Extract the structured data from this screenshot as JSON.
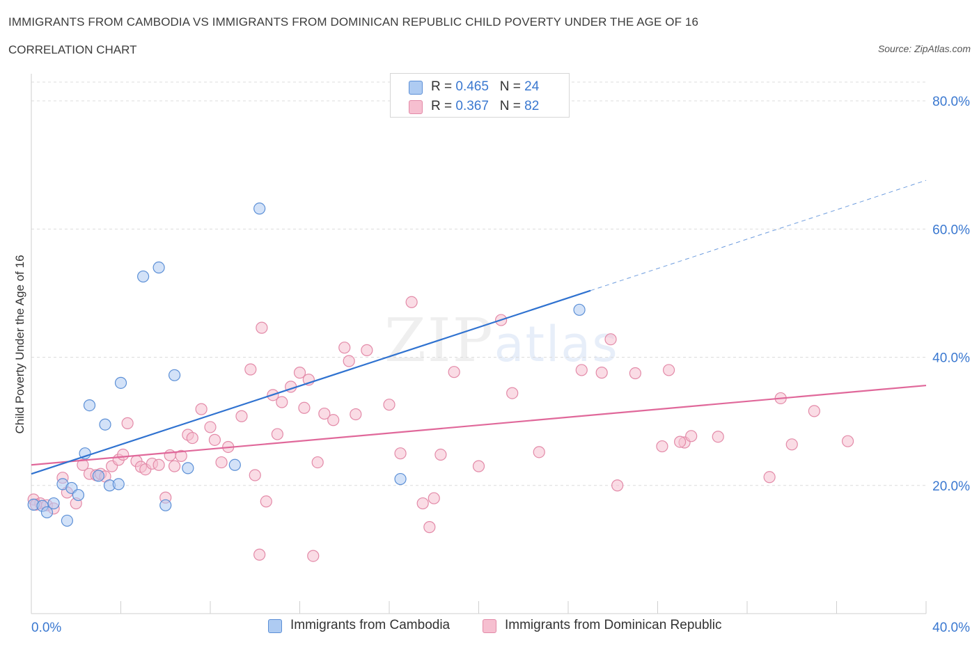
{
  "header": {
    "title": "IMMIGRANTS FROM CAMBODIA VS IMMIGRANTS FROM DOMINICAN REPUBLIC CHILD POVERTY UNDER THE AGE OF 16",
    "subtitle": "CORRELATION CHART",
    "source": "Source: ZipAtlas.com"
  },
  "watermark": {
    "zip": "ZIP",
    "atlas": "atlas"
  },
  "legend": {
    "rows": [
      {
        "r_label": "R = ",
        "r_value": "0.465",
        "n_label": "N = ",
        "n_value": "24"
      },
      {
        "r_label": "R = ",
        "r_value": "0.367",
        "n_label": "N = ",
        "n_value": "82"
      }
    ]
  },
  "colors": {
    "cambodia_fill": "#aecbf2",
    "cambodia_stroke": "#5b8fd6",
    "cambodia_line": "#2f72d0",
    "dominican_fill": "#f6bfd0",
    "dominican_stroke": "#e38aa8",
    "dominican_line": "#e0689a",
    "axis_text": "#3a78d0",
    "grid": "#dcdcdc"
  },
  "chart_data": {
    "type": "scatter",
    "title": "IMMIGRANTS FROM CAMBODIA VS IMMIGRANTS FROM DOMINICAN REPUBLIC CHILD POVERTY UNDER THE AGE OF 16",
    "ylabel": "Child Poverty Under the Age of 16",
    "x_tick_labels": [
      "0.0%",
      "40.0%"
    ],
    "y_tick_labels": [
      "20.0%",
      "40.0%",
      "60.0%",
      "80.0%"
    ],
    "y_ticks": [
      20,
      40,
      60,
      80
    ],
    "xlim": [
      0,
      40
    ],
    "ylim": [
      0,
      80
    ],
    "grid": true,
    "legend_position": "bottom",
    "series": [
      {
        "name": "Immigrants from Cambodia",
        "points": [
          [
            0.1,
            17.0
          ],
          [
            0.5,
            16.8
          ],
          [
            0.7,
            15.8
          ],
          [
            1.0,
            17.2
          ],
          [
            1.4,
            20.2
          ],
          [
            1.6,
            14.5
          ],
          [
            1.8,
            19.6
          ],
          [
            2.1,
            18.5
          ],
          [
            2.4,
            25.0
          ],
          [
            2.6,
            32.5
          ],
          [
            3.0,
            21.5
          ],
          [
            3.3,
            29.5
          ],
          [
            3.5,
            20.0
          ],
          [
            3.9,
            20.2
          ],
          [
            4.0,
            36.0
          ],
          [
            5.0,
            52.6
          ],
          [
            5.7,
            54.0
          ],
          [
            6.0,
            16.9
          ],
          [
            6.4,
            37.2
          ],
          [
            7.0,
            22.7
          ],
          [
            9.1,
            23.2
          ],
          [
            10.2,
            63.2
          ],
          [
            16.5,
            21.0
          ],
          [
            24.5,
            47.4
          ]
        ],
        "trend": {
          "x": [
            0,
            25
          ],
          "y": [
            21.8,
            50.4
          ],
          "extended_x": [
            40
          ],
          "extended_y": [
            67.6
          ]
        }
      },
      {
        "name": "Immigrants from Dominican Republic",
        "points": [
          [
            0.1,
            17.8
          ],
          [
            0.4,
            17.2
          ],
          [
            0.7,
            16.9
          ],
          [
            1.0,
            16.4
          ],
          [
            1.4,
            21.2
          ],
          [
            1.6,
            18.9
          ],
          [
            2.0,
            17.2
          ],
          [
            2.3,
            23.2
          ],
          [
            2.6,
            21.8
          ],
          [
            2.9,
            21.6
          ],
          [
            3.1,
            21.8
          ],
          [
            3.3,
            21.4
          ],
          [
            3.6,
            23.0
          ],
          [
            3.9,
            24.0
          ],
          [
            4.1,
            24.8
          ],
          [
            4.3,
            29.7
          ],
          [
            4.7,
            23.8
          ],
          [
            4.9,
            22.9
          ],
          [
            5.1,
            22.5
          ],
          [
            5.4,
            23.4
          ],
          [
            5.7,
            23.2
          ],
          [
            6.0,
            18.1
          ],
          [
            6.2,
            24.7
          ],
          [
            6.4,
            23.0
          ],
          [
            6.7,
            24.6
          ],
          [
            7.0,
            27.9
          ],
          [
            7.2,
            27.4
          ],
          [
            7.6,
            31.9
          ],
          [
            8.0,
            29.1
          ],
          [
            8.2,
            27.1
          ],
          [
            8.5,
            23.6
          ],
          [
            8.8,
            26.0
          ],
          [
            9.4,
            30.8
          ],
          [
            9.8,
            38.1
          ],
          [
            10.0,
            21.6
          ],
          [
            10.3,
            44.6
          ],
          [
            10.5,
            17.5
          ],
          [
            10.8,
            34.1
          ],
          [
            11.0,
            28.0
          ],
          [
            11.2,
            33.0
          ],
          [
            11.6,
            35.4
          ],
          [
            12.0,
            37.6
          ],
          [
            12.2,
            32.1
          ],
          [
            12.4,
            36.5
          ],
          [
            12.8,
            23.6
          ],
          [
            13.1,
            31.2
          ],
          [
            13.5,
            30.2
          ],
          [
            14.0,
            41.5
          ],
          [
            14.2,
            39.4
          ],
          [
            14.5,
            31.1
          ],
          [
            15.0,
            41.1
          ],
          [
            16.0,
            32.6
          ],
          [
            16.5,
            25.0
          ],
          [
            17.0,
            48.6
          ],
          [
            17.5,
            17.2
          ],
          [
            18.0,
            18.0
          ],
          [
            18.3,
            24.8
          ],
          [
            18.9,
            37.7
          ],
          [
            20.0,
            23.0
          ],
          [
            21.0,
            45.8
          ],
          [
            21.5,
            34.4
          ],
          [
            22.7,
            25.2
          ],
          [
            24.6,
            38.0
          ],
          [
            25.5,
            37.6
          ],
          [
            25.9,
            42.8
          ],
          [
            26.2,
            20.0
          ],
          [
            27.0,
            37.5
          ],
          [
            28.2,
            26.1
          ],
          [
            28.5,
            38.0
          ],
          [
            29.2,
            26.7
          ],
          [
            29.5,
            27.7
          ],
          [
            30.7,
            27.6
          ],
          [
            33.0,
            21.3
          ],
          [
            33.5,
            33.6
          ],
          [
            34.0,
            26.4
          ],
          [
            35.0,
            31.6
          ],
          [
            36.5,
            26.9
          ],
          [
            17.8,
            13.5
          ],
          [
            10.2,
            9.2
          ],
          [
            12.6,
            9.0
          ],
          [
            0.2,
            17.0
          ],
          [
            29.0,
            26.8
          ]
        ],
        "trend": {
          "x": [
            0,
            40
          ],
          "y": [
            23.2,
            35.6
          ]
        }
      }
    ]
  }
}
